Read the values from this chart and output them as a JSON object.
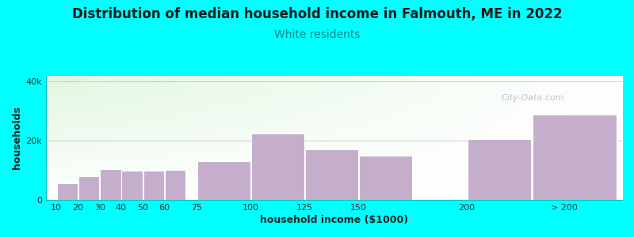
{
  "title": "Distribution of median household income in Falmouth, ME in 2022",
  "subtitle": "White residents",
  "xlabel": "household income ($1000)",
  "ylabel": "households",
  "background_outer": "#00FFFF",
  "bar_color": "#C4AECC",
  "ylim": [
    0,
    42000
  ],
  "ytick_labels": [
    "0",
    "20k",
    "40k"
  ],
  "ytick_values": [
    0,
    20000,
    40000
  ],
  "bar_lefts": [
    10,
    20,
    30,
    40,
    50,
    60,
    75,
    100,
    125,
    150,
    200,
    230
  ],
  "bar_widths": [
    10,
    10,
    10,
    10,
    10,
    10,
    25,
    25,
    25,
    25,
    30,
    40
  ],
  "bar_values": [
    5500,
    8000,
    10500,
    10000,
    10000,
    10200,
    13000,
    22500,
    17000,
    15000,
    20500,
    29000
  ],
  "xtick_positions": [
    10,
    20,
    30,
    40,
    50,
    60,
    75,
    100,
    125,
    150,
    200,
    245
  ],
  "xtick_labels": [
    "10",
    "20",
    "30",
    "40",
    "50",
    "60",
    "75",
    "100",
    "125",
    "150",
    "200",
    "> 200"
  ],
  "xlim": [
    5,
    272
  ],
  "title_fontsize": 12,
  "subtitle_fontsize": 10,
  "axis_label_fontsize": 9,
  "tick_fontsize": 8,
  "watermark_text": "City-Data.com",
  "grad_color_topleft": [
    0.88,
    0.97,
    0.88
  ],
  "grad_color_white": [
    1.0,
    1.0,
    1.0
  ]
}
